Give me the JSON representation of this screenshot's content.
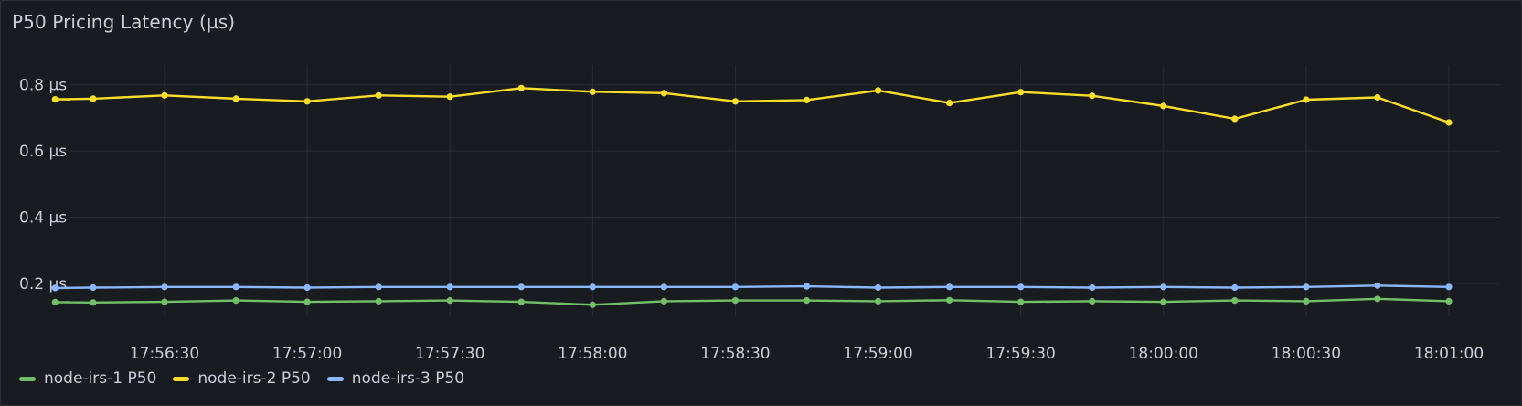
{
  "panel": {
    "title": "P50 Pricing Latency (µs)"
  },
  "chart_data": {
    "type": "line",
    "title": "P50 Pricing Latency (µs)",
    "xlabel": "",
    "ylabel": "",
    "x": [
      "17:56:07",
      "17:56:15",
      "17:56:30",
      "17:56:45",
      "17:57:00",
      "17:57:15",
      "17:57:30",
      "17:57:45",
      "17:58:00",
      "17:58:15",
      "17:58:30",
      "17:58:45",
      "17:59:00",
      "17:59:15",
      "17:59:30",
      "17:59:45",
      "18:00:00",
      "18:00:15",
      "18:00:30",
      "18:00:45",
      "18:01:00"
    ],
    "x_ticks": [
      "17:56:30",
      "17:57:00",
      "17:57:30",
      "17:58:00",
      "17:58:30",
      "17:59:00",
      "17:59:30",
      "18:00:00",
      "18:00:30",
      "18:01:00"
    ],
    "y_ticks": [
      "0.2 µs",
      "0.4 µs",
      "0.6 µs",
      "0.8 µs"
    ],
    "y_tick_values": [
      0.2,
      0.4,
      0.6,
      0.8
    ],
    "ylim": [
      0.1,
      0.86
    ],
    "grid": true,
    "legend_position": "bottom-left",
    "series": [
      {
        "name": "node-irs-1 P50",
        "color": "#73bf69",
        "values": [
          0.143,
          0.142,
          0.144,
          0.148,
          0.144,
          0.146,
          0.148,
          0.144,
          0.135,
          0.146,
          0.148,
          0.148,
          0.146,
          0.149,
          0.144,
          0.146,
          0.144,
          0.148,
          0.146,
          0.153,
          0.146
        ]
      },
      {
        "name": "node-irs-2 P50",
        "color": "#fade2a",
        "values": [
          0.756,
          0.758,
          0.768,
          0.758,
          0.75,
          0.768,
          0.764,
          0.79,
          0.779,
          0.775,
          0.75,
          0.754,
          0.783,
          0.745,
          0.778,
          0.767,
          0.736,
          0.697,
          0.755,
          0.762,
          0.686
        ]
      },
      {
        "name": "node-irs-3 P50",
        "color": "#8ab8ff",
        "values": [
          0.186,
          0.187,
          0.189,
          0.189,
          0.187,
          0.189,
          0.189,
          0.189,
          0.189,
          0.189,
          0.189,
          0.191,
          0.187,
          0.189,
          0.189,
          0.187,
          0.189,
          0.187,
          0.189,
          0.193,
          0.189
        ]
      }
    ]
  }
}
